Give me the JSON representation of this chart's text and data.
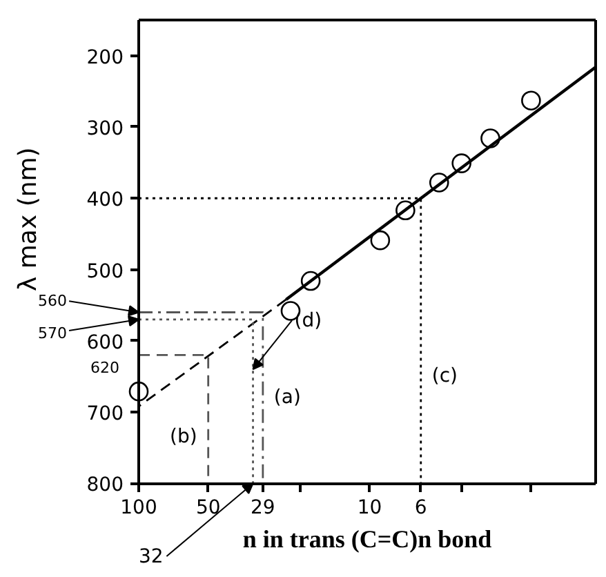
{
  "chart_data": {
    "type": "scatter",
    "xlabel": "n in trans (C=C)n bond",
    "ylabel": "λ max (nm)",
    "log": "x",
    "grid": false,
    "xlim": [
      100,
      1.05
    ],
    "ylim": [
      800,
      150
    ],
    "xticks": [
      100,
      50,
      29,
      {
        "value": 20,
        "label": null
      },
      10,
      6,
      {
        "value": 4,
        "label": null
      },
      {
        "value": 2,
        "label": null
      }
    ],
    "yticks": [
      200,
      300,
      400,
      500,
      600,
      700,
      800
    ],
    "series": [
      {
        "marker": "circle",
        "color": "#000000",
        "x": [
          2,
          3,
          4,
          5,
          7,
          9,
          18,
          22,
          100
        ],
        "values": [
          263,
          316,
          351,
          378,
          417,
          459,
          516,
          558,
          671
        ]
      },
      {
        "type": "line",
        "line_style": "solid",
        "color": "#000000",
        "x": [
          1.05,
          23
        ],
        "values": [
          216,
          542
        ]
      },
      {
        "type": "line",
        "line_style": "dashed",
        "color": "#000000",
        "x": [
          23,
          100
        ],
        "values": [
          542,
          692
        ]
      },
      {
        "type": "line",
        "line_style": "dotted",
        "color": "#000000",
        "x": [
          100,
          6,
          6
        ],
        "values": [
          400,
          400,
          800
        ]
      },
      {
        "type": "line",
        "line_style": "dashed",
        "color": "#555555",
        "x": [
          100,
          50,
          50
        ],
        "values": [
          620,
          620,
          800
        ]
      },
      {
        "type": "line",
        "line_style": "dashdot",
        "color": "#555555",
        "x": [
          100,
          29,
          29
        ],
        "values": [
          560,
          560,
          800
        ]
      },
      {
        "type": "line",
        "line_style": "dotted",
        "color": "#555555",
        "x": [
          100,
          32,
          32
        ],
        "values": [
          570,
          570,
          800
        ]
      }
    ],
    "annotations": [
      {
        "text": "560",
        "x": 100,
        "y": 560
      },
      {
        "text": "570",
        "x": 100,
        "y": 570
      },
      {
        "text": "620",
        "x": 100,
        "y": 620
      },
      {
        "text": "32",
        "x": 32,
        "y": 800
      },
      {
        "text": "(a)",
        "x": 29,
        "y": 680
      },
      {
        "text": "(b)",
        "x": 50,
        "y": 735
      },
      {
        "text": "(c)",
        "x": 6,
        "y": 650
      },
      {
        "text": "(d)",
        "x": 32,
        "y": 640
      }
    ]
  }
}
